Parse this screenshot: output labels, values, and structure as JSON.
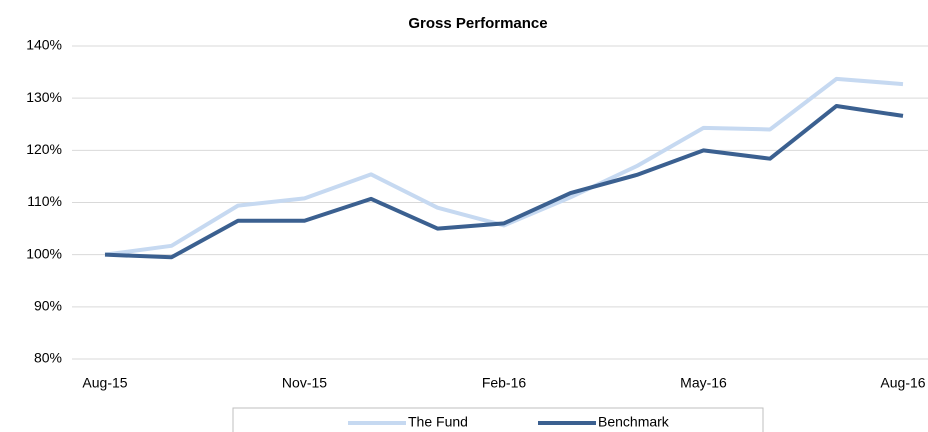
{
  "chart_data": {
    "type": "line",
    "title": "Gross Performance",
    "categories": [
      "Aug-15",
      null,
      null,
      "Nov-15",
      null,
      null,
      "Feb-16",
      null,
      null,
      "May-16",
      null,
      null,
      "Aug-16"
    ],
    "series": [
      {
        "name": "The Fund",
        "color": "#c6d9f1",
        "values": [
          100,
          101.7,
          109.4,
          110.8,
          115.4,
          109,
          105.6,
          111,
          117,
          124.3,
          124,
          133.7,
          132.7
        ]
      },
      {
        "name": "Benchmark",
        "color": "#3b6090",
        "values": [
          100,
          99.5,
          106.5,
          106.5,
          110.7,
          105,
          106,
          111.8,
          115.3,
          120,
          118.4,
          128.5,
          126.6
        ]
      }
    ],
    "ylim": [
      80,
      140
    ],
    "yticks": [
      {
        "value": 80,
        "label": "80%"
      },
      {
        "value": 90,
        "label": "90%"
      },
      {
        "value": 100,
        "label": "100%"
      },
      {
        "value": 110,
        "label": "110%"
      },
      {
        "value": 120,
        "label": "120%"
      },
      {
        "value": 130,
        "label": "130%"
      },
      {
        "value": 140,
        "label": "140%"
      }
    ],
    "grid": true,
    "legend": "bottom"
  }
}
